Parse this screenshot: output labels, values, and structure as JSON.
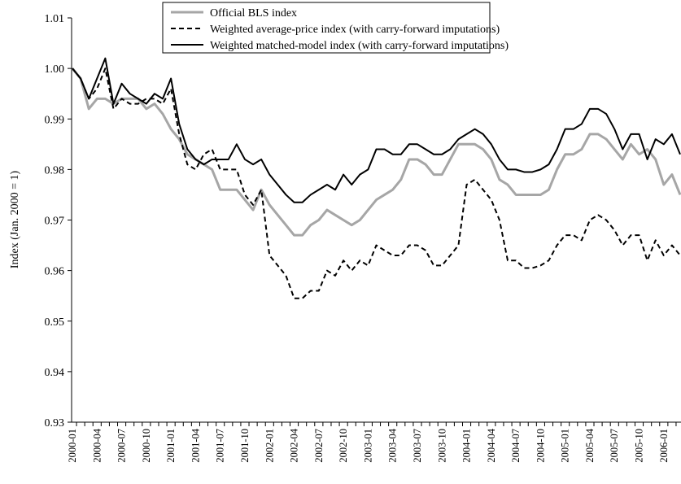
{
  "chart_data": {
    "type": "line",
    "y_label": "Index (Jan. 2000 = 1)",
    "x": [
      "2000-01",
      null,
      null,
      "2000-04",
      null,
      null,
      "2000-07",
      null,
      null,
      "2000-10",
      null,
      null,
      "2001-01",
      null,
      null,
      "2001-04",
      null,
      null,
      "2001-07",
      null,
      null,
      "2001-10",
      null,
      null,
      "2002-01",
      null,
      null,
      "2002-04",
      null,
      null,
      "2002-07",
      null,
      null,
      "2002-10",
      null,
      null,
      "2003-01",
      null,
      null,
      "2003-04",
      null,
      null,
      "2003-07",
      null,
      null,
      "2003-10",
      null,
      null,
      "2004-01",
      null,
      null,
      "2004-04",
      null,
      null,
      "2004-07",
      null,
      null,
      "2004-10",
      null,
      null,
      "2005-01",
      null,
      null,
      "2005-04",
      null,
      null,
      "2005-07",
      null,
      null,
      "2005-10",
      null,
      null,
      "2006-01",
      null,
      null
    ],
    "series": [
      {
        "name": "Official BLS index",
        "color": "#a6a6a6",
        "style": "solid",
        "values": [
          1.0,
          0.998,
          0.992,
          0.994,
          0.994,
          0.993,
          0.994,
          0.994,
          0.994,
          0.992,
          0.993,
          0.991,
          0.988,
          0.986,
          0.983,
          0.982,
          0.981,
          0.98,
          0.976,
          0.976,
          0.976,
          0.974,
          0.972,
          0.976,
          0.973,
          0.971,
          0.969,
          0.967,
          0.967,
          0.969,
          0.97,
          0.972,
          0.971,
          0.97,
          0.969,
          0.97,
          0.972,
          0.974,
          0.975,
          0.976,
          0.978,
          0.982,
          0.982,
          0.981,
          0.979,
          0.979,
          0.982,
          0.985,
          0.985,
          0.985,
          0.984,
          0.982,
          0.978,
          0.977,
          0.975,
          0.975,
          0.975,
          0.975,
          0.976,
          0.98,
          0.983,
          0.983,
          0.984,
          0.987,
          0.987,
          0.986,
          0.984,
          0.982,
          0.985,
          0.983,
          0.984,
          0.982,
          0.977,
          0.979,
          0.975
        ]
      },
      {
        "name": "Weighted average-price index (with carry-forward imputations)",
        "color": "#000000",
        "style": "dashed",
        "values": [
          1.0,
          0.998,
          0.994,
          0.996,
          1.0,
          0.992,
          0.994,
          0.993,
          0.993,
          0.994,
          0.994,
          0.993,
          0.996,
          0.987,
          0.981,
          0.98,
          0.983,
          0.984,
          0.98,
          0.98,
          0.98,
          0.975,
          0.973,
          0.976,
          0.963,
          0.961,
          0.959,
          0.9545,
          0.9545,
          0.956,
          0.956,
          0.96,
          0.959,
          0.962,
          0.96,
          0.962,
          0.961,
          0.965,
          0.964,
          0.963,
          0.963,
          0.965,
          0.965,
          0.964,
          0.961,
          0.961,
          0.963,
          0.965,
          0.977,
          0.978,
          0.976,
          0.974,
          0.97,
          0.962,
          0.962,
          0.9605,
          0.9605,
          0.961,
          0.962,
          0.965,
          0.967,
          0.967,
          0.966,
          0.97,
          0.971,
          0.97,
          0.968,
          0.965,
          0.967,
          0.967,
          0.962,
          0.966,
          0.963,
          0.965,
          0.963
        ]
      },
      {
        "name": "Weighted matched-model index (with carry-forward imputations)",
        "color": "#000000",
        "style": "solid",
        "values": [
          1.0,
          0.998,
          0.994,
          0.998,
          1.002,
          0.993,
          0.997,
          0.995,
          0.994,
          0.993,
          0.995,
          0.994,
          0.998,
          0.989,
          0.984,
          0.982,
          0.981,
          0.982,
          0.982,
          0.982,
          0.985,
          0.982,
          0.981,
          0.982,
          0.979,
          0.977,
          0.975,
          0.9735,
          0.9735,
          0.975,
          0.976,
          0.977,
          0.976,
          0.979,
          0.977,
          0.979,
          0.98,
          0.984,
          0.984,
          0.983,
          0.983,
          0.985,
          0.985,
          0.984,
          0.983,
          0.983,
          0.984,
          0.986,
          0.987,
          0.988,
          0.987,
          0.985,
          0.982,
          0.98,
          0.98,
          0.9795,
          0.9795,
          0.98,
          0.981,
          0.984,
          0.988,
          0.988,
          0.989,
          0.992,
          0.992,
          0.991,
          0.988,
          0.984,
          0.987,
          0.987,
          0.982,
          0.986,
          0.985,
          0.987,
          0.983
        ]
      }
    ],
    "ylim": [
      0.93,
      1.01
    ],
    "yticks": [
      0.93,
      0.94,
      0.95,
      0.96,
      0.97,
      0.98,
      0.99,
      {
        "value": 1,
        "label": "1.00"
      },
      1.01
    ],
    "grid": false,
    "legend": "top"
  }
}
